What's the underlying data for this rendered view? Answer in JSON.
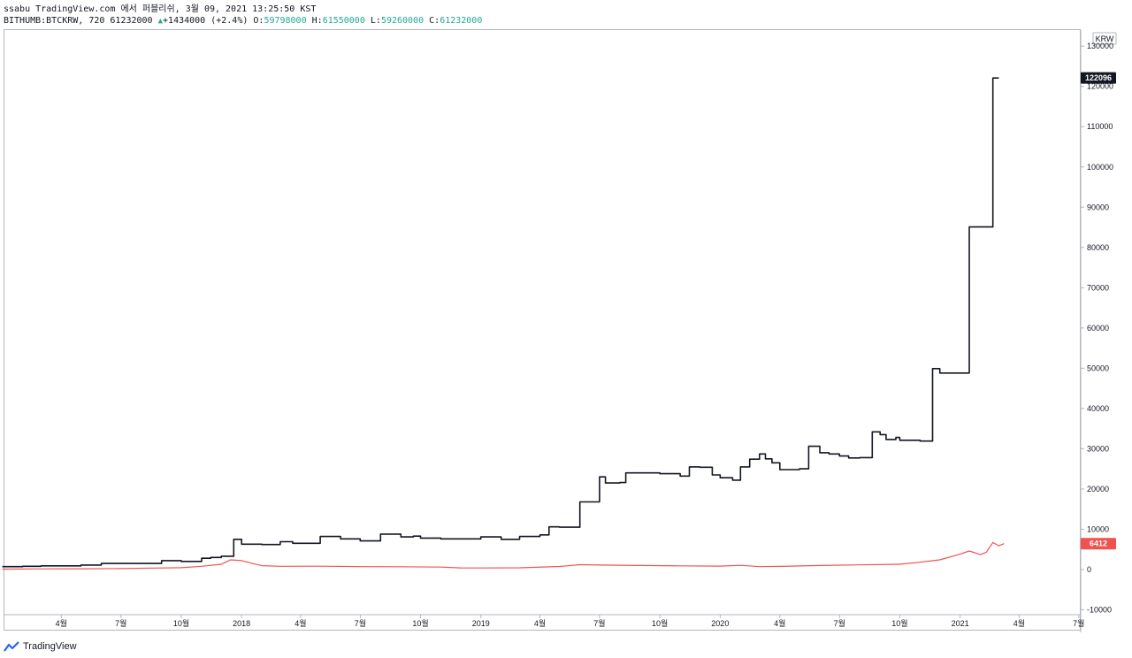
{
  "header": {
    "publish_line": "ssabu TradingView.com 에서 퍼블리쉬, 3월 09, 2021 13:25:50 KST",
    "symbol_line_prefix": "BITHUMB:BTCKRW, 720 61232000",
    "change": "+1434000 (+2.4%)",
    "open_label": "O:",
    "open_value": "59798000",
    "high_label": "H:",
    "high_value": "61550000",
    "low_label": "L:",
    "low_value": "59260000",
    "close_label": "C:",
    "close_value": "61232000"
  },
  "footer": {
    "brand": "TradingView"
  },
  "chart_data": {
    "type": "line",
    "currency_label": "KRW",
    "y_ticks": [
      -10000,
      0,
      10000,
      20000,
      30000,
      40000,
      50000,
      60000,
      70000,
      80000,
      90000,
      100000,
      110000,
      120000,
      130000
    ],
    "ylim": [
      -11000,
      134000
    ],
    "x_ticks": [
      "4월",
      "7월",
      "10월",
      "2018",
      "4월",
      "7월",
      "10월",
      "2019",
      "4월",
      "7월",
      "10월",
      "2020",
      "4월",
      "7월",
      "10월",
      "2021",
      "4월",
      "7월"
    ],
    "x_tick_dates": [
      "2017-04",
      "2017-07",
      "2017-10",
      "2018-01",
      "2018-04",
      "2018-07",
      "2018-10",
      "2019-01",
      "2019-04",
      "2019-07",
      "2019-10",
      "2020-01",
      "2020-04",
      "2020-07",
      "2020-10",
      "2021-01",
      "2021-04",
      "2021-07"
    ],
    "grid": false,
    "series": [
      {
        "color": "#131722",
        "last_value_label": "122096",
        "step": true,
        "points": [
          [
            "2017-01",
            700
          ],
          [
            "2017-02",
            800
          ],
          [
            "2017-03",
            900
          ],
          [
            "2017-05",
            1100
          ],
          [
            "2017-06",
            1500
          ],
          [
            "2017-07",
            1500
          ],
          [
            "2017-08",
            1500
          ],
          [
            "2017-09",
            2200
          ],
          [
            "2017-10",
            2000
          ],
          [
            "2017-11",
            2800
          ],
          [
            "2017-11-15",
            3000
          ],
          [
            "2017-12",
            3300
          ],
          [
            "2017-12-20",
            7500
          ],
          [
            "2018-01",
            6300
          ],
          [
            "2018-02",
            6200
          ],
          [
            "2018-03",
            6900
          ],
          [
            "2018-03-20",
            6500
          ],
          [
            "2018-05",
            8200
          ],
          [
            "2018-06",
            7600
          ],
          [
            "2018-07",
            7100
          ],
          [
            "2018-08",
            8800
          ],
          [
            "2018-09",
            8100
          ],
          [
            "2018-09-20",
            8300
          ],
          [
            "2018-10",
            7800
          ],
          [
            "2018-11",
            7600
          ],
          [
            "2019-01",
            8100
          ],
          [
            "2019-02",
            7500
          ],
          [
            "2019-03",
            8200
          ],
          [
            "2019-04",
            8600
          ],
          [
            "2019-04-15",
            10600
          ],
          [
            "2019-05",
            10500
          ],
          [
            "2019-06",
            16800
          ],
          [
            "2019-07",
            23000
          ],
          [
            "2019-07-10",
            21500
          ],
          [
            "2019-08",
            21600
          ],
          [
            "2019-08-10",
            24000
          ],
          [
            "2019-09",
            24000
          ],
          [
            "2019-10",
            23800
          ],
          [
            "2019-11",
            23200
          ],
          [
            "2019-11-15",
            25500
          ],
          [
            "2019-12",
            25400
          ],
          [
            "2019-12-20",
            23500
          ],
          [
            "2020-01",
            22800
          ],
          [
            "2020-01-20",
            22200
          ],
          [
            "2020-02",
            25500
          ],
          [
            "2020-02-15",
            27400
          ],
          [
            "2020-03",
            28700
          ],
          [
            "2020-03-10",
            27500
          ],
          [
            "2020-03-20",
            26500
          ],
          [
            "2020-04",
            24800
          ],
          [
            "2020-05",
            25000
          ],
          [
            "2020-05-15",
            30600
          ],
          [
            "2020-06",
            29000
          ],
          [
            "2020-06-15",
            28700
          ],
          [
            "2020-07",
            28200
          ],
          [
            "2020-07-15",
            27700
          ],
          [
            "2020-08",
            27800
          ],
          [
            "2020-08-20",
            34200
          ],
          [
            "2020-09",
            33500
          ],
          [
            "2020-09-10",
            32300
          ],
          [
            "2020-09-25",
            32800
          ],
          [
            "2020-10",
            32100
          ],
          [
            "2020-11",
            31900
          ],
          [
            "2020-11-20",
            49900
          ],
          [
            "2020-12",
            48800
          ],
          [
            "2021-01",
            48800
          ],
          [
            "2021-01-15",
            85100
          ],
          [
            "2021-02",
            85100
          ],
          [
            "2021-02-20",
            122096
          ],
          [
            "2021-03",
            122096
          ]
        ]
      },
      {
        "color": "#ef5350",
        "last_value_label": "6412",
        "step": false,
        "points": [
          [
            "2017-01",
            100
          ],
          [
            "2017-03",
            150
          ],
          [
            "2017-05",
            180
          ],
          [
            "2017-07",
            230
          ],
          [
            "2017-09",
            380
          ],
          [
            "2017-10",
            450
          ],
          [
            "2017-11",
            800
          ],
          [
            "2017-12",
            1300
          ],
          [
            "2017-12-15",
            2400
          ],
          [
            "2018-01",
            2200
          ],
          [
            "2018-01-20",
            1400
          ],
          [
            "2018-02",
            950
          ],
          [
            "2018-03",
            800
          ],
          [
            "2018-05",
            820
          ],
          [
            "2018-07",
            700
          ],
          [
            "2018-09",
            680
          ],
          [
            "2018-11",
            600
          ],
          [
            "2018-12",
            400
          ],
          [
            "2019-01",
            380
          ],
          [
            "2019-03",
            420
          ],
          [
            "2019-05",
            750
          ],
          [
            "2019-06",
            1200
          ],
          [
            "2019-07",
            1100
          ],
          [
            "2019-09",
            1000
          ],
          [
            "2019-11",
            900
          ],
          [
            "2020-01",
            850
          ],
          [
            "2020-02",
            1050
          ],
          [
            "2020-03",
            700
          ],
          [
            "2020-04",
            780
          ],
          [
            "2020-06",
            990
          ],
          [
            "2020-08",
            1150
          ],
          [
            "2020-10",
            1300
          ],
          [
            "2020-11",
            1800
          ],
          [
            "2020-12",
            2400
          ],
          [
            "2021-01",
            3800
          ],
          [
            "2021-01-15",
            4600
          ],
          [
            "2021-02",
            3700
          ],
          [
            "2021-02-10",
            4300
          ],
          [
            "2021-02-20",
            6700
          ],
          [
            "2021-03",
            5900
          ],
          [
            "2021-03-09",
            6412
          ]
        ]
      }
    ]
  }
}
